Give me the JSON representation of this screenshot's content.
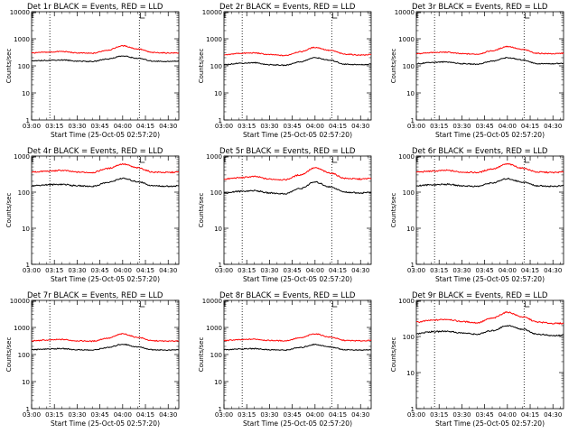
{
  "chart_data": [
    {
      "type": "line",
      "title": "Det 1r BLACK = Events, RED = LLD",
      "xlabel": "Start Time (25-Oct-05 02:57:20)",
      "ylabel": "Counts/sec",
      "y_scale": "log",
      "ylim": [
        1,
        10000
      ],
      "y_ticks": [
        "1",
        "10",
        "100",
        "1000",
        "10000"
      ],
      "x_ticks": [
        "03:00",
        "03:15",
        "03:30",
        "03:45",
        "04:00",
        "04:15",
        "04:30"
      ],
      "xlim": [
        "03:00",
        "04:37"
      ],
      "vlines": [
        "03:12",
        "04:11"
      ],
      "series": [
        {
          "color": "#ff0000",
          "x": [
            "03:00",
            "03:10",
            "03:20",
            "03:30",
            "03:40",
            "03:50",
            "04:00",
            "04:10",
            "04:20",
            "04:30",
            "04:37"
          ],
          "values": [
            300,
            320,
            340,
            300,
            290,
            380,
            550,
            420,
            310,
            300,
            300
          ]
        },
        {
          "color": "#000000",
          "x": [
            "03:00",
            "03:10",
            "03:20",
            "03:30",
            "03:40",
            "03:50",
            "04:00",
            "04:10",
            "04:20",
            "04:30",
            "04:37"
          ],
          "values": [
            150,
            160,
            165,
            150,
            145,
            180,
            230,
            190,
            150,
            145,
            150
          ]
        }
      ]
    },
    {
      "type": "line",
      "title": "Det 2r BLACK = Events, RED = LLD",
      "xlabel": "Start Time (25-Oct-05 02:57:20)",
      "ylabel": "Counts/sec",
      "y_scale": "log",
      "ylim": [
        1,
        10000
      ],
      "y_ticks": [
        "1",
        "10",
        "100",
        "1000",
        "10000"
      ],
      "x_ticks": [
        "03:00",
        "03:15",
        "03:30",
        "03:45",
        "04:00",
        "04:15",
        "04:30"
      ],
      "xlim": [
        "03:00",
        "04:37"
      ],
      "vlines": [
        "03:12",
        "04:11"
      ],
      "series": [
        {
          "color": "#ff0000",
          "x": [
            "03:00",
            "03:10",
            "03:20",
            "03:30",
            "03:40",
            "03:50",
            "04:00",
            "04:10",
            "04:20",
            "04:30",
            "04:37"
          ],
          "values": [
            250,
            290,
            300,
            260,
            240,
            330,
            480,
            370,
            270,
            250,
            260
          ]
        },
        {
          "color": "#000000",
          "x": [
            "03:00",
            "03:10",
            "03:20",
            "03:30",
            "03:40",
            "03:50",
            "04:00",
            "04:10",
            "04:20",
            "04:30",
            "04:37"
          ],
          "values": [
            110,
            125,
            130,
            110,
            105,
            140,
            200,
            160,
            115,
            110,
            115
          ]
        }
      ]
    },
    {
      "type": "line",
      "title": "Det 3r BLACK = Events, RED = LLD",
      "xlabel": "Start Time (25-Oct-05 02:57:20)",
      "ylabel": "Counts/sec",
      "y_scale": "log",
      "ylim": [
        1,
        10000
      ],
      "y_ticks": [
        "1",
        "10",
        "100",
        "1000",
        "10000"
      ],
      "x_ticks": [
        "03:00",
        "03:15",
        "03:30",
        "03:45",
        "04:00",
        "04:15",
        "04:30"
      ],
      "xlim": [
        "03:00",
        "04:37"
      ],
      "vlines": [
        "03:12",
        "04:11"
      ],
      "series": [
        {
          "color": "#ff0000",
          "x": [
            "03:00",
            "03:10",
            "03:20",
            "03:30",
            "03:40",
            "03:50",
            "04:00",
            "04:10",
            "04:20",
            "04:30",
            "04:37"
          ],
          "values": [
            280,
            310,
            320,
            280,
            270,
            360,
            520,
            400,
            290,
            280,
            290
          ]
        },
        {
          "color": "#000000",
          "x": [
            "03:00",
            "03:10",
            "03:20",
            "03:30",
            "03:40",
            "03:50",
            "04:00",
            "04:10",
            "04:20",
            "04:30",
            "04:37"
          ],
          "values": [
            120,
            135,
            140,
            120,
            115,
            150,
            200,
            165,
            120,
            120,
            125
          ]
        }
      ]
    },
    {
      "type": "line",
      "title": "Det 4r BLACK = Events, RED = LLD",
      "xlabel": "Start Time (25-Oct-05 02:57:20)",
      "ylabel": "Counts/sec",
      "y_scale": "log",
      "ylim": [
        1,
        1000
      ],
      "y_ticks": [
        "1",
        "10",
        "100",
        "1000"
      ],
      "x_ticks": [
        "03:00",
        "03:15",
        "03:30",
        "03:45",
        "04:00",
        "04:15",
        "04:30"
      ],
      "xlim": [
        "03:00",
        "04:37"
      ],
      "vlines": [
        "03:12",
        "04:11"
      ],
      "series": [
        {
          "color": "#ff0000",
          "x": [
            "03:00",
            "03:10",
            "03:20",
            "03:30",
            "03:40",
            "03:50",
            "04:00",
            "04:10",
            "04:20",
            "04:30",
            "04:37"
          ],
          "values": [
            360,
            380,
            400,
            360,
            350,
            450,
            600,
            470,
            360,
            350,
            360
          ]
        },
        {
          "color": "#000000",
          "x": [
            "03:00",
            "03:10",
            "03:20",
            "03:30",
            "03:40",
            "03:50",
            "04:00",
            "04:10",
            "04:20",
            "04:30",
            "04:37"
          ],
          "values": [
            150,
            160,
            165,
            150,
            145,
            185,
            240,
            195,
            150,
            145,
            150
          ]
        }
      ]
    },
    {
      "type": "line",
      "title": "Det 5r BLACK = Events, RED = LLD",
      "xlabel": "Start Time (25-Oct-05 02:57:20)",
      "ylabel": "Counts/sec",
      "y_scale": "log",
      "ylim": [
        1,
        1000
      ],
      "y_ticks": [
        "1",
        "10",
        "100",
        "1000"
      ],
      "x_ticks": [
        "03:00",
        "03:15",
        "03:30",
        "03:45",
        "04:00",
        "04:15",
        "04:30"
      ],
      "xlim": [
        "03:00",
        "04:37"
      ],
      "vlines": [
        "03:12",
        "04:11"
      ],
      "series": [
        {
          "color": "#ff0000",
          "x": [
            "03:00",
            "03:10",
            "03:20",
            "03:30",
            "03:40",
            "03:50",
            "04:00",
            "04:10",
            "04:20",
            "04:30",
            "04:37"
          ],
          "values": [
            230,
            250,
            270,
            230,
            220,
            300,
            470,
            340,
            240,
            230,
            240
          ]
        },
        {
          "color": "#000000",
          "x": [
            "03:00",
            "03:10",
            "03:20",
            "03:30",
            "03:40",
            "03:50",
            "04:00",
            "04:10",
            "04:20",
            "04:30",
            "04:37"
          ],
          "values": [
            95,
            105,
            110,
            95,
            90,
            125,
            190,
            140,
            100,
            95,
            100
          ]
        }
      ]
    },
    {
      "type": "line",
      "title": "Det 6r BLACK = Events, RED = LLD",
      "xlabel": "Start Time (25-Oct-05 02:57:20)",
      "ylabel": "Counts/sec",
      "y_scale": "log",
      "ylim": [
        1,
        1000
      ],
      "y_ticks": [
        "1",
        "10",
        "100",
        "1000"
      ],
      "x_ticks": [
        "03:00",
        "03:15",
        "03:30",
        "03:45",
        "04:00",
        "04:15",
        "04:30"
      ],
      "xlim": [
        "03:00",
        "04:37"
      ],
      "vlines": [
        "03:12",
        "04:11"
      ],
      "series": [
        {
          "color": "#ff0000",
          "x": [
            "03:00",
            "03:10",
            "03:20",
            "03:30",
            "03:40",
            "03:50",
            "04:00",
            "04:10",
            "04:20",
            "04:30",
            "04:37"
          ],
          "values": [
            360,
            380,
            400,
            360,
            350,
            440,
            600,
            460,
            360,
            350,
            360
          ]
        },
        {
          "color": "#000000",
          "x": [
            "03:00",
            "03:10",
            "03:20",
            "03:30",
            "03:40",
            "03:50",
            "04:00",
            "04:10",
            "04:20",
            "04:30",
            "04:37"
          ],
          "values": [
            150,
            160,
            165,
            150,
            145,
            180,
            235,
            190,
            150,
            145,
            150
          ]
        }
      ]
    },
    {
      "type": "line",
      "title": "Det 7r BLACK = Events, RED = LLD",
      "xlabel": "Start Time (25-Oct-05 02:57:20)",
      "ylabel": "Counts/sec",
      "y_scale": "log",
      "ylim": [
        1,
        10000
      ],
      "y_ticks": [
        "1",
        "10",
        "100",
        "1000",
        "10000"
      ],
      "x_ticks": [
        "03:00",
        "03:15",
        "03:30",
        "03:45",
        "04:00",
        "04:15",
        "04:30"
      ],
      "xlim": [
        "03:00",
        "04:37"
      ],
      "vlines": [
        "03:12",
        "04:11"
      ],
      "series": [
        {
          "color": "#ff0000",
          "x": [
            "03:00",
            "03:10",
            "03:20",
            "03:30",
            "03:40",
            "03:50",
            "04:00",
            "04:10",
            "04:20",
            "04:30",
            "04:37"
          ],
          "values": [
            320,
            340,
            360,
            320,
            310,
            400,
            580,
            430,
            320,
            310,
            320
          ]
        },
        {
          "color": "#000000",
          "x": [
            "03:00",
            "03:10",
            "03:20",
            "03:30",
            "03:40",
            "03:50",
            "04:00",
            "04:10",
            "04:20",
            "04:30",
            "04:37"
          ],
          "values": [
            150,
            160,
            165,
            150,
            145,
            180,
            240,
            190,
            150,
            145,
            150
          ]
        }
      ]
    },
    {
      "type": "line",
      "title": "Det 8r BLACK = Events, RED = LLD",
      "xlabel": "Start Time (25-Oct-05 02:57:20)",
      "ylabel": "Counts/sec",
      "y_scale": "log",
      "ylim": [
        1,
        10000
      ],
      "y_ticks": [
        "1",
        "10",
        "100",
        "1000",
        "10000"
      ],
      "x_ticks": [
        "03:00",
        "03:15",
        "03:30",
        "03:45",
        "04:00",
        "04:15",
        "04:30"
      ],
      "xlim": [
        "03:00",
        "04:37"
      ],
      "vlines": [
        "03:12",
        "04:11"
      ],
      "series": [
        {
          "color": "#ff0000",
          "x": [
            "03:00",
            "03:10",
            "03:20",
            "03:30",
            "03:40",
            "03:50",
            "04:00",
            "04:10",
            "04:20",
            "04:30",
            "04:37"
          ],
          "values": [
            330,
            350,
            370,
            330,
            320,
            410,
            580,
            440,
            330,
            320,
            330
          ]
        },
        {
          "color": "#000000",
          "x": [
            "03:00",
            "03:10",
            "03:20",
            "03:30",
            "03:40",
            "03:50",
            "04:00",
            "04:10",
            "04:20",
            "04:30",
            "04:37"
          ],
          "values": [
            150,
            160,
            165,
            150,
            145,
            180,
            235,
            190,
            150,
            145,
            150
          ]
        }
      ]
    },
    {
      "type": "line",
      "title": "Det 9r BLACK = Events, RED = LLD",
      "xlabel": "Start Time (25-Oct-05 02:57:20)",
      "ylabel": "Counts/sec",
      "y_scale": "log",
      "ylim": [
        1,
        1000
      ],
      "y_ticks": [
        "1",
        "10",
        "100",
        "1000"
      ],
      "x_ticks": [
        "03:00",
        "03:15",
        "03:30",
        "03:45",
        "04:00",
        "04:15",
        "04:30"
      ],
      "xlim": [
        "03:00",
        "04:37"
      ],
      "vlines": [
        "03:12",
        "04:11"
      ],
      "series": [
        {
          "color": "#ff0000",
          "x": [
            "03:00",
            "03:10",
            "03:20",
            "03:30",
            "03:40",
            "03:50",
            "04:00",
            "04:10",
            "04:20",
            "04:30",
            "04:37"
          ],
          "values": [
            250,
            280,
            300,
            260,
            240,
            320,
            470,
            350,
            250,
            230,
            230
          ]
        },
        {
          "color": "#000000",
          "x": [
            "03:00",
            "03:10",
            "03:20",
            "03:30",
            "03:40",
            "03:50",
            "04:00",
            "04:10",
            "04:20",
            "04:30",
            "04:37"
          ],
          "values": [
            120,
            135,
            140,
            125,
            115,
            145,
            200,
            160,
            115,
            105,
            110
          ]
        }
      ]
    }
  ]
}
